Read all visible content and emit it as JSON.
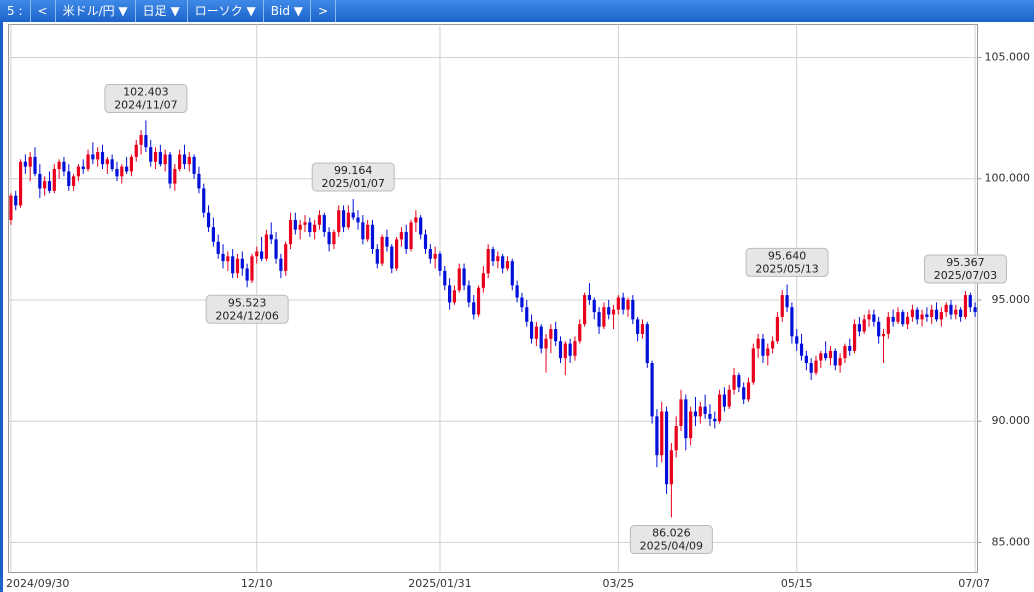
{
  "toolbar": {
    "items": [
      "5 :",
      "<",
      "米ドル/円 ▼",
      "日足 ▼",
      "ローソク ▼",
      "Bid ▼",
      ">"
    ]
  },
  "chart_data": {
    "type": "candlestick",
    "up_color": "#e8001c",
    "down_color": "#0010d8",
    "grid": true,
    "ylim": [
      83.76,
      106.36
    ],
    "yticks": [
      {
        "value": 85,
        "label": "85.000"
      },
      {
        "value": 90,
        "label": "90.000"
      },
      {
        "value": 95,
        "label": "95.000"
      },
      {
        "value": 100,
        "label": "100.000"
      },
      {
        "value": 105,
        "label": "105.000"
      }
    ],
    "categories": [
      "2024/09/30",
      null,
      null,
      null,
      null,
      null,
      null,
      null,
      null,
      null,
      null,
      null,
      null,
      null,
      null,
      null,
      null,
      null,
      null,
      null,
      null,
      null,
      null,
      null,
      null,
      null,
      null,
      null,
      null,
      null,
      null,
      null,
      null,
      null,
      null,
      null,
      null,
      null,
      null,
      null,
      null,
      null,
      null,
      null,
      null,
      null,
      null,
      null,
      null,
      null,
      null,
      "12/10",
      null,
      null,
      null,
      null,
      null,
      null,
      null,
      null,
      null,
      null,
      null,
      null,
      null,
      null,
      null,
      null,
      null,
      null,
      null,
      null,
      null,
      null,
      null,
      null,
      null,
      null,
      null,
      null,
      null,
      null,
      null,
      null,
      null,
      null,
      null,
      null,
      null,
      "2025/01/31",
      null,
      null,
      null,
      null,
      null,
      null,
      null,
      null,
      null,
      null,
      null,
      null,
      null,
      null,
      null,
      null,
      null,
      null,
      null,
      null,
      null,
      null,
      null,
      null,
      null,
      null,
      null,
      null,
      null,
      null,
      null,
      null,
      null,
      null,
      null,
      null,
      "03/25",
      null,
      null,
      null,
      null,
      null,
      null,
      null,
      null,
      null,
      null,
      null,
      null,
      null,
      null,
      null,
      null,
      null,
      null,
      null,
      null,
      null,
      null,
      null,
      null,
      null,
      null,
      null,
      null,
      null,
      null,
      null,
      null,
      null,
      null,
      null,
      null,
      "05/15",
      null,
      null,
      null,
      null,
      null,
      null,
      null,
      null,
      null,
      null,
      null,
      null,
      null,
      null,
      null,
      null,
      null,
      null,
      null,
      null,
      null,
      null,
      null,
      null,
      null,
      null,
      null,
      null,
      null,
      null,
      null,
      null,
      null,
      null,
      null,
      null,
      "07/07"
    ],
    "ohlc": [
      [
        98.3,
        99.4,
        98.1,
        99.3
      ],
      [
        99.3,
        99.5,
        98.7,
        98.9
      ],
      [
        98.9,
        100.8,
        98.8,
        100.7
      ],
      [
        100.7,
        101.0,
        100.2,
        100.5
      ],
      [
        100.5,
        101.1,
        99.9,
        100.9
      ],
      [
        100.9,
        101.3,
        100.1,
        100.2
      ],
      [
        100.2,
        100.6,
        99.2,
        99.6
      ],
      [
        99.6,
        100.1,
        99.3,
        99.9
      ],
      [
        99.9,
        100.3,
        99.4,
        99.5
      ],
      [
        99.5,
        100.6,
        99.4,
        100.4
      ],
      [
        100.4,
        100.8,
        100.0,
        100.7
      ],
      [
        100.7,
        100.9,
        100.1,
        100.3
      ],
      [
        100.3,
        100.6,
        99.5,
        99.7
      ],
      [
        99.7,
        100.2,
        99.5,
        100.1
      ],
      [
        100.1,
        100.6,
        99.9,
        100.5
      ],
      [
        100.5,
        100.8,
        100.2,
        100.4
      ],
      [
        100.4,
        101.2,
        100.3,
        101.0
      ],
      [
        101.0,
        101.5,
        100.6,
        100.8
      ],
      [
        100.8,
        101.3,
        100.5,
        101.1
      ],
      [
        101.1,
        101.4,
        100.4,
        100.6
      ],
      [
        100.6,
        100.9,
        100.2,
        100.8
      ],
      [
        100.8,
        101.0,
        100.3,
        100.4
      ],
      [
        100.4,
        100.7,
        99.9,
        100.1
      ],
      [
        100.1,
        100.6,
        99.8,
        100.5
      ],
      [
        100.5,
        100.9,
        100.2,
        100.3
      ],
      [
        100.3,
        101.0,
        100.1,
        100.9
      ],
      [
        100.9,
        101.6,
        100.7,
        101.4
      ],
      [
        101.4,
        102.0,
        101.0,
        101.8
      ],
      [
        101.8,
        102.403,
        101.1,
        101.3
      ],
      [
        101.3,
        101.6,
        100.5,
        100.7
      ],
      [
        100.7,
        101.3,
        100.4,
        101.1
      ],
      [
        101.1,
        101.4,
        100.5,
        100.6
      ],
      [
        100.6,
        101.2,
        100.3,
        101.0
      ],
      [
        101.0,
        101.1,
        99.6,
        99.8
      ],
      [
        99.8,
        100.6,
        99.5,
        100.4
      ],
      [
        100.4,
        101.2,
        100.3,
        101.0
      ],
      [
        101.0,
        101.4,
        100.4,
        100.6
      ],
      [
        100.6,
        101.1,
        100.3,
        100.9
      ],
      [
        100.9,
        101.0,
        100.0,
        100.2
      ],
      [
        100.2,
        100.5,
        99.4,
        99.6
      ],
      [
        99.6,
        99.8,
        98.4,
        98.6
      ],
      [
        98.6,
        98.9,
        97.8,
        98.0
      ],
      [
        98.0,
        98.4,
        97.2,
        97.4
      ],
      [
        97.4,
        97.7,
        96.7,
        96.9
      ],
      [
        96.9,
        97.3,
        96.3,
        96.6
      ],
      [
        96.6,
        97.0,
        96.2,
        96.8
      ],
      [
        96.8,
        97.1,
        95.9,
        96.1
      ],
      [
        96.1,
        96.9,
        95.9,
        96.7
      ],
      [
        96.7,
        97.0,
        96.0,
        96.3
      ],
      [
        96.3,
        96.5,
        95.523,
        95.8
      ],
      [
        95.8,
        96.9,
        95.7,
        96.8
      ],
      [
        96.8,
        97.2,
        96.5,
        97.0
      ],
      [
        97.0,
        97.6,
        96.6,
        96.7
      ],
      [
        96.7,
        97.9,
        96.6,
        97.7
      ],
      [
        97.7,
        98.2,
        97.3,
        97.5
      ],
      [
        97.5,
        97.8,
        96.5,
        96.7
      ],
      [
        96.7,
        96.9,
        95.9,
        96.2
      ],
      [
        96.2,
        97.4,
        96.0,
        97.3
      ],
      [
        97.3,
        98.6,
        97.1,
        98.3
      ],
      [
        98.3,
        98.6,
        97.7,
        97.9
      ],
      [
        97.9,
        98.3,
        97.5,
        98.1
      ],
      [
        98.1,
        98.5,
        97.8,
        98.2
      ],
      [
        98.2,
        98.4,
        97.6,
        97.8
      ],
      [
        97.8,
        98.3,
        97.5,
        98.1
      ],
      [
        98.1,
        98.7,
        97.9,
        98.5
      ],
      [
        98.5,
        98.6,
        97.6,
        97.8
      ],
      [
        97.8,
        98.0,
        97.0,
        97.3
      ],
      [
        97.3,
        97.9,
        97.1,
        97.8
      ],
      [
        97.8,
        98.9,
        97.6,
        98.7
      ],
      [
        98.7,
        98.9,
        97.8,
        98.0
      ],
      [
        98.0,
        98.9,
        97.9,
        98.6
      ],
      [
        98.6,
        99.164,
        98.3,
        98.4
      ],
      [
        98.4,
        98.7,
        97.9,
        98.2
      ],
      [
        98.2,
        98.5,
        97.3,
        97.5
      ],
      [
        97.5,
        98.3,
        97.4,
        98.1
      ],
      [
        98.1,
        98.3,
        96.9,
        97.1
      ],
      [
        97.1,
        97.3,
        96.3,
        96.5
      ],
      [
        96.5,
        97.7,
        96.4,
        97.6
      ],
      [
        97.6,
        97.9,
        97.0,
        97.2
      ],
      [
        97.2,
        97.3,
        96.1,
        96.3
      ],
      [
        96.3,
        97.6,
        96.2,
        97.5
      ],
      [
        97.5,
        98.0,
        97.2,
        97.8
      ],
      [
        97.8,
        98.1,
        96.9,
        97.1
      ],
      [
        97.1,
        98.3,
        97.0,
        98.2
      ],
      [
        98.2,
        98.7,
        97.8,
        98.4
      ],
      [
        98.4,
        98.5,
        97.5,
        97.7
      ],
      [
        97.7,
        97.9,
        96.9,
        97.1
      ],
      [
        97.1,
        97.3,
        96.5,
        96.7
      ],
      [
        96.7,
        97.2,
        96.3,
        96.9
      ],
      [
        96.9,
        97.0,
        96.0,
        96.2
      ],
      [
        96.2,
        96.4,
        95.4,
        95.6
      ],
      [
        95.6,
        95.9,
        94.6,
        94.9
      ],
      [
        94.9,
        95.6,
        94.8,
        95.4
      ],
      [
        95.4,
        96.5,
        95.3,
        96.3
      ],
      [
        96.3,
        96.5,
        95.4,
        95.6
      ],
      [
        95.6,
        95.8,
        94.7,
        94.9
      ],
      [
        94.9,
        95.2,
        94.2,
        94.4
      ],
      [
        94.4,
        95.6,
        94.3,
        95.5
      ],
      [
        95.5,
        96.4,
        95.3,
        96.1
      ],
      [
        96.1,
        97.3,
        95.9,
        97.1
      ],
      [
        97.1,
        97.2,
        96.4,
        96.6
      ],
      [
        96.6,
        97.0,
        96.3,
        96.8
      ],
      [
        96.8,
        96.9,
        96.1,
        96.3
      ],
      [
        96.3,
        96.8,
        96.2,
        96.6
      ],
      [
        96.6,
        96.7,
        95.4,
        95.6
      ],
      [
        95.6,
        95.8,
        94.9,
        95.1
      ],
      [
        95.1,
        95.3,
        94.5,
        94.7
      ],
      [
        94.7,
        95.0,
        93.9,
        94.1
      ],
      [
        94.1,
        94.4,
        93.2,
        93.4
      ],
      [
        93.4,
        94.1,
        93.1,
        93.9
      ],
      [
        93.9,
        94.0,
        92.8,
        93.0
      ],
      [
        93.0,
        93.6,
        92.0,
        93.4
      ],
      [
        93.4,
        94.0,
        92.8,
        93.8
      ],
      [
        93.8,
        94.1,
        93.1,
        93.3
      ],
      [
        93.3,
        93.5,
        92.4,
        92.6
      ],
      [
        92.6,
        93.3,
        91.9,
        93.2
      ],
      [
        93.2,
        93.4,
        92.4,
        92.7
      ],
      [
        92.7,
        93.5,
        92.5,
        93.3
      ],
      [
        93.3,
        94.2,
        93.2,
        94.0
      ],
      [
        94.0,
        95.3,
        93.9,
        95.2
      ],
      [
        95.2,
        95.7,
        94.8,
        95.0
      ],
      [
        95.0,
        95.1,
        94.2,
        94.5
      ],
      [
        94.5,
        94.7,
        93.6,
        93.9
      ],
      [
        93.9,
        94.9,
        93.8,
        94.7
      ],
      [
        94.7,
        95.0,
        94.2,
        94.4
      ],
      [
        94.4,
        94.8,
        93.8,
        94.6
      ],
      [
        94.6,
        95.2,
        94.4,
        95.1
      ],
      [
        95.1,
        95.3,
        94.4,
        94.6
      ],
      [
        94.6,
        95.1,
        94.3,
        95.0
      ],
      [
        95.0,
        95.2,
        94.0,
        94.2
      ],
      [
        94.2,
        94.3,
        93.3,
        93.6
      ],
      [
        93.6,
        94.2,
        93.4,
        94.0
      ],
      [
        94.0,
        94.1,
        92.2,
        92.4
      ],
      [
        92.4,
        92.5,
        89.9,
        90.2
      ],
      [
        90.2,
        90.5,
        88.1,
        88.6
      ],
      [
        88.6,
        90.8,
        88.3,
        90.4
      ],
      [
        90.4,
        90.6,
        87.0,
        87.4
      ],
      [
        87.4,
        89.1,
        86.026,
        88.8
      ],
      [
        88.8,
        90.2,
        88.5,
        89.8
      ],
      [
        89.8,
        91.3,
        89.6,
        90.9
      ],
      [
        90.9,
        91.1,
        88.8,
        89.3
      ],
      [
        89.3,
        90.6,
        89.0,
        90.4
      ],
      [
        90.4,
        91.0,
        89.8,
        90.2
      ],
      [
        90.2,
        90.8,
        89.9,
        90.6
      ],
      [
        90.6,
        91.1,
        90.1,
        90.3
      ],
      [
        90.3,
        90.7,
        89.8,
        90.1
      ],
      [
        90.1,
        90.4,
        89.7,
        90.0
      ],
      [
        90.0,
        91.3,
        89.9,
        91.1
      ],
      [
        91.1,
        91.4,
        90.4,
        90.6
      ],
      [
        90.6,
        91.5,
        90.5,
        91.3
      ],
      [
        91.3,
        92.2,
        91.1,
        91.9
      ],
      [
        91.9,
        92.0,
        91.2,
        91.4
      ],
      [
        91.4,
        91.6,
        90.7,
        90.9
      ],
      [
        90.9,
        91.8,
        90.8,
        91.6
      ],
      [
        91.6,
        93.2,
        91.5,
        93.0
      ],
      [
        93.0,
        93.6,
        92.6,
        93.4
      ],
      [
        93.4,
        93.6,
        92.4,
        92.7
      ],
      [
        92.7,
        93.2,
        92.3,
        93.0
      ],
      [
        93.0,
        93.5,
        92.8,
        93.3
      ],
      [
        93.3,
        94.5,
        93.2,
        94.3
      ],
      [
        94.3,
        95.4,
        94.1,
        95.2
      ],
      [
        95.2,
        95.64,
        94.5,
        94.7
      ],
      [
        94.7,
        94.9,
        93.2,
        93.5
      ],
      [
        93.5,
        93.8,
        92.9,
        93.2
      ],
      [
        93.2,
        93.6,
        92.5,
        92.7
      ],
      [
        92.7,
        92.9,
        92.1,
        92.4
      ],
      [
        92.4,
        92.6,
        91.7,
        92.0
      ],
      [
        92.0,
        92.7,
        91.9,
        92.5
      ],
      [
        92.5,
        92.9,
        92.2,
        92.8
      ],
      [
        92.8,
        93.3,
        92.5,
        92.6
      ],
      [
        92.6,
        93.1,
        92.3,
        92.9
      ],
      [
        92.9,
        93.0,
        92.1,
        92.3
      ],
      [
        92.3,
        92.8,
        92.0,
        92.6
      ],
      [
        92.6,
        93.2,
        92.4,
        93.1
      ],
      [
        93.1,
        93.4,
        92.7,
        92.9
      ],
      [
        92.9,
        94.2,
        92.8,
        94.0
      ],
      [
        94.0,
        94.3,
        93.5,
        93.7
      ],
      [
        93.7,
        94.4,
        93.6,
        94.2
      ],
      [
        94.2,
        94.6,
        93.9,
        94.4
      ],
      [
        94.4,
        94.6,
        93.9,
        94.1
      ],
      [
        94.1,
        94.3,
        93.2,
        93.5
      ],
      [
        93.5,
        93.8,
        92.4,
        93.6
      ],
      [
        93.6,
        94.5,
        93.4,
        94.3
      ],
      [
        94.3,
        94.6,
        93.9,
        94.1
      ],
      [
        94.1,
        94.7,
        94.0,
        94.5
      ],
      [
        94.5,
        94.6,
        93.9,
        94.0
      ],
      [
        94.0,
        94.5,
        93.8,
        94.3
      ],
      [
        94.3,
        94.8,
        94.1,
        94.6
      ],
      [
        94.6,
        94.7,
        94.0,
        94.2
      ],
      [
        94.2,
        94.6,
        93.9,
        94.4
      ],
      [
        94.4,
        94.7,
        94.1,
        94.3
      ],
      [
        94.3,
        94.8,
        94.0,
        94.6
      ],
      [
        94.6,
        94.9,
        94.1,
        94.2
      ],
      [
        94.2,
        94.7,
        93.9,
        94.5
      ],
      [
        94.5,
        94.9,
        94.3,
        94.8
      ],
      [
        94.8,
        95.0,
        94.2,
        94.4
      ],
      [
        94.4,
        94.8,
        94.2,
        94.6
      ],
      [
        94.6,
        94.7,
        94.1,
        94.3
      ],
      [
        94.3,
        95.367,
        94.2,
        95.2
      ],
      [
        95.2,
        95.3,
        94.5,
        94.7
      ],
      [
        94.7,
        94.9,
        94.3,
        94.5
      ]
    ],
    "callouts": [
      {
        "value": 102.403,
        "date": "2024/11/07"
      },
      {
        "value": 95.523,
        "date": "2024/12/06"
      },
      {
        "value": 99.164,
        "date": "2025/01/07"
      },
      {
        "value": 86.026,
        "date": "2025/04/09"
      },
      {
        "value": 95.64,
        "value_label": "95.640",
        "date": "2025/05/13"
      },
      {
        "value": 95.367,
        "date": "2025/07/03"
      }
    ]
  }
}
